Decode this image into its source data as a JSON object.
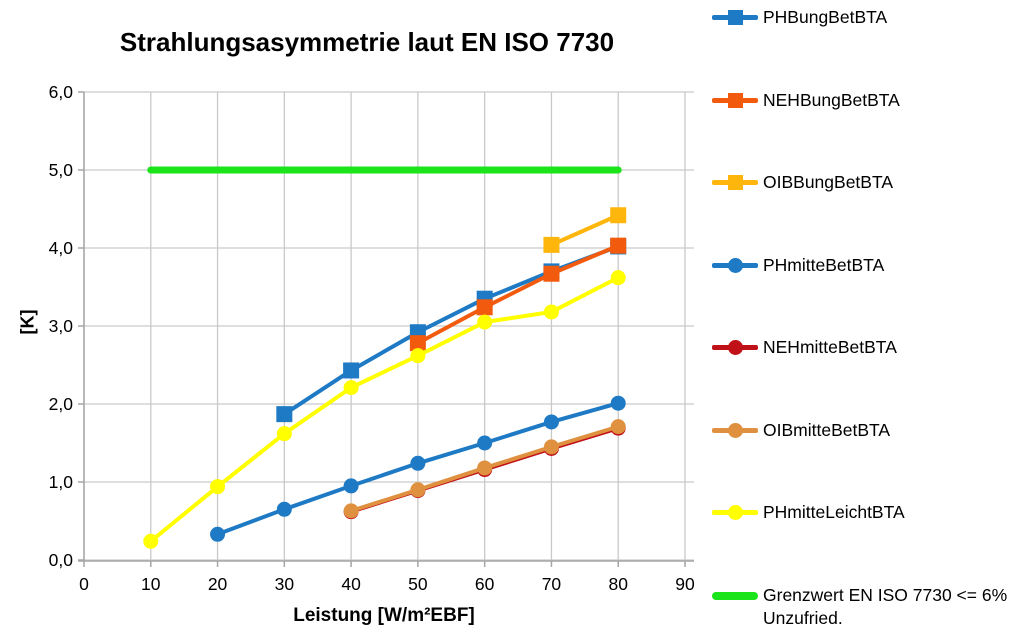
{
  "chart_data": {
    "type": "line",
    "title": "Strahlungsasymmetrie laut EN ISO 7730",
    "xlabel": "Leistung [W/m²EBF]",
    "ylabel": "[K]",
    "xlim": [
      0,
      90
    ],
    "ylim": [
      0,
      6
    ],
    "x_ticks": [
      0,
      10,
      20,
      30,
      40,
      50,
      60,
      70,
      80,
      90
    ],
    "y_ticks": [
      0,
      1,
      2,
      3,
      4,
      5,
      6
    ],
    "y_tick_labels": [
      "0,0",
      "1,0",
      "2,0",
      "3,0",
      "4,0",
      "5,0",
      "6,0"
    ],
    "grid": true,
    "legend_position": "right",
    "axis_color": "#a6a6a6",
    "grid_color": "#c9c9c9",
    "series": [
      {
        "name": "PHBungBetBTA",
        "color": "#1e7ac4",
        "marker": "square",
        "line_width": 4,
        "x": [
          30,
          40,
          50,
          60,
          70,
          80
        ],
        "y": [
          1.87,
          2.43,
          2.92,
          3.35,
          3.7,
          4.02
        ]
      },
      {
        "name": "NEHBungBetBTA",
        "color": "#f25b0d",
        "marker": "square",
        "line_width": 4,
        "x": [
          50,
          60,
          70,
          80
        ],
        "y": [
          2.78,
          3.24,
          3.67,
          4.03
        ]
      },
      {
        "name": "OIBBungBetBTA",
        "color": "#ffb60c",
        "marker": "square",
        "line_width": 4,
        "x": [
          70,
          80
        ],
        "y": [
          4.04,
          4.42
        ]
      },
      {
        "name": "PHmitteBetBTA",
        "color": "#1e7ac4",
        "marker": "circle",
        "line_width": 4,
        "x": [
          20,
          30,
          40,
          50,
          60,
          70,
          80
        ],
        "y": [
          0.33,
          0.65,
          0.95,
          1.24,
          1.5,
          1.77,
          2.01
        ]
      },
      {
        "name": "NEHmitteBetBTA",
        "color": "#c01118",
        "marker": "circle",
        "line_width": 4,
        "x": [
          40,
          50,
          60,
          70,
          80
        ],
        "y": [
          0.62,
          0.89,
          1.16,
          1.43,
          1.69
        ]
      },
      {
        "name": "OIBmitteBetBTA",
        "color": "#e0913f",
        "marker": "circle",
        "line_width": 4,
        "x": [
          40,
          50,
          60,
          70,
          80
        ],
        "y": [
          0.63,
          0.9,
          1.18,
          1.45,
          1.71
        ]
      },
      {
        "name": "PHmitteLeichtBTA",
        "color": "#ffff00",
        "marker": "circle",
        "line_width": 4,
        "x": [
          10,
          20,
          30,
          40,
          50,
          60,
          70,
          80
        ],
        "y": [
          0.24,
          0.94,
          1.62,
          2.21,
          2.62,
          3.05,
          3.18,
          3.62
        ]
      },
      {
        "name": "Grenzwert EN ISO 7730 <= 6% Unzufried.",
        "color": "#1be41b",
        "marker": "none",
        "line_width": 7,
        "x": [
          10,
          80
        ],
        "y": [
          5.0,
          5.0
        ]
      }
    ]
  }
}
